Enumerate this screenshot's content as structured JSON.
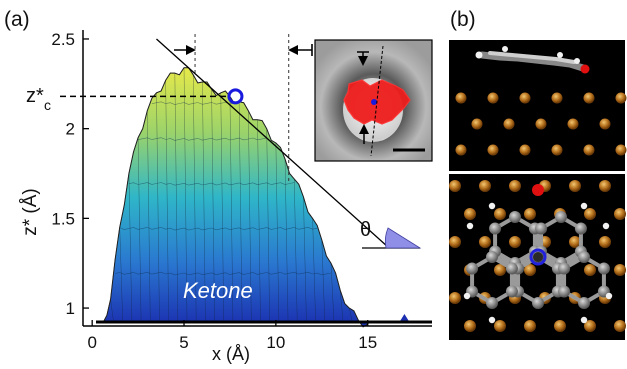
{
  "panel_a": {
    "label": "(a)",
    "xlabel": "x (Å)",
    "ylabel": "z* (Å)",
    "zc_label": "z*",
    "zc_sub": "c",
    "theta_label": "θ",
    "annotation": "Ketone",
    "colors": {
      "top": "#e6e94a",
      "mid": "#2fb6c8",
      "bottom": "#1b2fb0",
      "marker": "#1a1adf",
      "wedge": "#8f8fe8"
    }
  },
  "panel_b": {
    "label": "(b)",
    "colors": {
      "substrate": "#b5701c",
      "carbon": "#8a8a8a",
      "hydrogen": "#f2f2f2",
      "oxygen": "#e01010",
      "nitrogen": "#2222dd"
    }
  },
  "chart_data": {
    "type": "area",
    "xlabel": "x (Å)",
    "ylabel": "z* (Å)",
    "xlim": [
      -0.5,
      18.5
    ],
    "ylim": [
      0.9,
      2.55
    ],
    "xticks": [
      0,
      5,
      10,
      15
    ],
    "yticks": [
      1.0,
      1.5,
      2.0,
      2.5
    ],
    "x": [
      0.6,
      1.0,
      1.5,
      2.0,
      2.5,
      3.0,
      3.5,
      4.0,
      4.5,
      5.0,
      5.5,
      6.0,
      6.5,
      7.0,
      7.5,
      8.0,
      8.5,
      9.0,
      9.5,
      10.0,
      10.5,
      11.0,
      11.5,
      12.0,
      12.5,
      13.0,
      13.5,
      14.0,
      14.5,
      15.0
    ],
    "y": [
      0.92,
      1.05,
      1.45,
      1.75,
      1.95,
      2.1,
      2.2,
      2.27,
      2.31,
      2.34,
      2.3,
      2.26,
      2.22,
      2.2,
      2.18,
      2.15,
      2.1,
      2.05,
      2.0,
      1.92,
      1.83,
      1.72,
      1.62,
      1.5,
      1.38,
      1.25,
      1.1,
      1.0,
      0.93,
      0.91
    ],
    "zc_star": 2.18,
    "zc_x": 7.8,
    "guide_x": [
      5.6,
      10.7
    ],
    "tangent_line": {
      "x": [
        3.5,
        16.0
      ],
      "y": [
        2.5,
        1.35
      ]
    }
  }
}
